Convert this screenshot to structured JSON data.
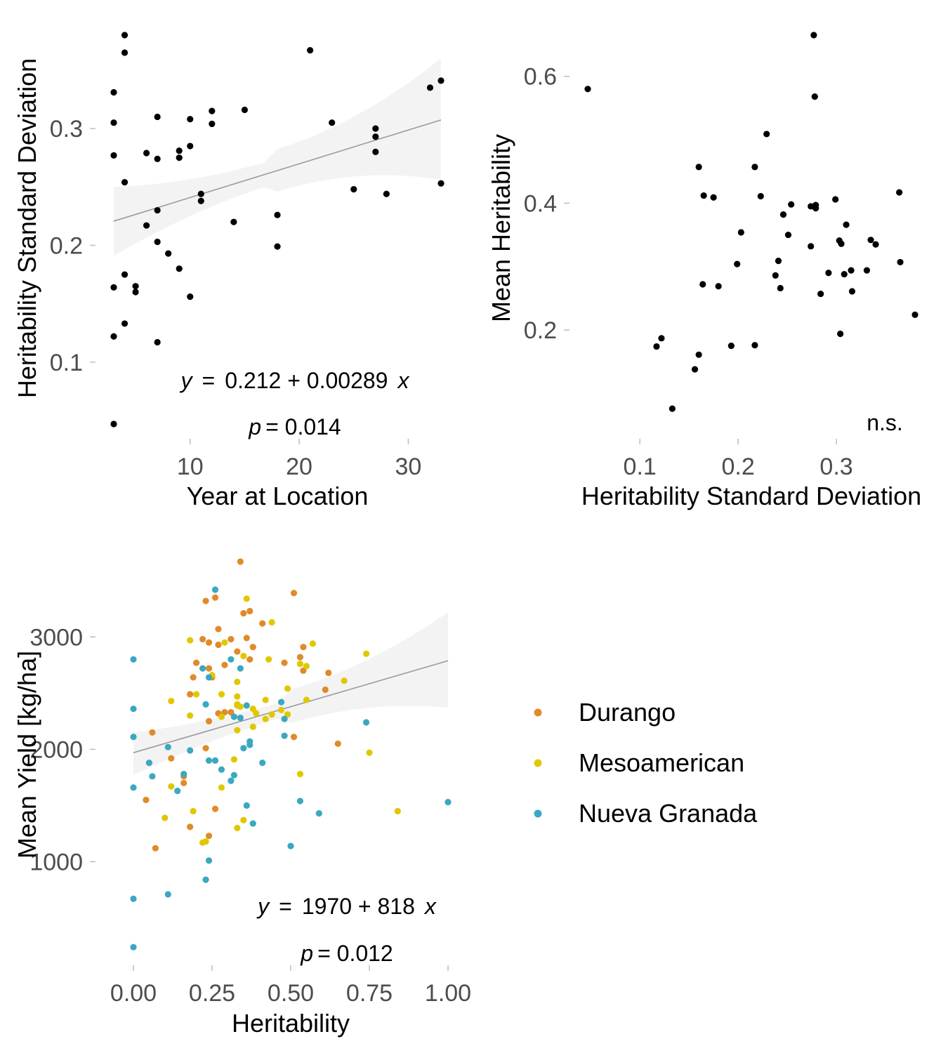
{
  "colors": {
    "Durango": "#e08b2a",
    "Mesoamerican": "#e0c800",
    "Nueva Granada": "#3aa8c1",
    "points": "#000000",
    "fit_line": "#9a9a9a",
    "ci_band": "#f3f3f3",
    "tick": "#bdbdbd"
  },
  "chart_data": [
    {
      "id": "panel-a",
      "type": "scatter",
      "xlabel": "Year  at Location",
      "ylabel": "Heritability Standard Deviation",
      "xlim": [
        3,
        33
      ],
      "ylim": [
        0.05,
        0.38
      ],
      "x_ticks": [
        10,
        20,
        30
      ],
      "y_ticks": [
        0.1,
        0.2,
        0.3
      ],
      "x_tick_labels": [
        "10",
        "20",
        "30"
      ],
      "y_tick_labels": [
        "0.1",
        "0.2",
        "0.3"
      ],
      "grid": false,
      "fit": {
        "intercept": 0.212,
        "slope": 0.00289,
        "ci_low": [
          0.191,
          0.256
        ],
        "ci_high": [
          0.25,
          0.36
        ]
      },
      "annotation_line1": {
        "y": "y",
        "eq": "=",
        "rhs": "0.212 + 0.00289",
        "x": "x"
      },
      "annotation_line2": {
        "p": "p",
        "rhs": "= 0.014"
      },
      "points": [
        [
          3,
          0.331
        ],
        [
          3,
          0.305
        ],
        [
          3,
          0.277
        ],
        [
          3,
          0.164
        ],
        [
          3,
          0.122
        ],
        [
          3,
          0.047
        ],
        [
          4,
          0.38
        ],
        [
          4,
          0.365
        ],
        [
          4,
          0.254
        ],
        [
          4,
          0.175
        ],
        [
          4,
          0.133
        ],
        [
          5,
          0.165
        ],
        [
          5,
          0.16
        ],
        [
          6,
          0.279
        ],
        [
          6,
          0.217
        ],
        [
          7,
          0.31
        ],
        [
          7,
          0.274
        ],
        [
          7,
          0.23
        ],
        [
          7,
          0.203
        ],
        [
          7,
          0.117
        ],
        [
          8,
          0.193
        ],
        [
          9,
          0.281
        ],
        [
          9,
          0.275
        ],
        [
          9,
          0.18
        ],
        [
          10,
          0.308
        ],
        [
          10,
          0.285
        ],
        [
          10,
          0.156
        ],
        [
          11,
          0.244
        ],
        [
          11,
          0.238
        ],
        [
          12,
          0.315
        ],
        [
          12,
          0.304
        ],
        [
          14,
          0.22
        ],
        [
          15,
          0.316
        ],
        [
          18,
          0.226
        ],
        [
          18,
          0.199
        ],
        [
          21,
          0.367
        ],
        [
          23,
          0.305
        ],
        [
          25,
          0.248
        ],
        [
          27,
          0.3
        ],
        [
          27,
          0.293
        ],
        [
          27,
          0.28
        ],
        [
          28,
          0.244
        ],
        [
          32,
          0.335
        ],
        [
          33,
          0.341
        ],
        [
          33,
          0.253
        ]
      ]
    },
    {
      "id": "panel-b",
      "type": "scatter",
      "xlabel": "Heritability Standard Deviation",
      "ylabel": "Mean Heritability",
      "xlim": [
        0.047,
        0.38
      ],
      "ylim": [
        0.075,
        0.665
      ],
      "x_ticks": [
        0.1,
        0.2,
        0.3
      ],
      "y_ticks": [
        0.2,
        0.4,
        0.6
      ],
      "x_tick_labels": [
        "0.1",
        "0.2",
        "0.3"
      ],
      "y_tick_labels": [
        "0.2",
        "0.4",
        "0.6"
      ],
      "grid": false,
      "annotation": "n.s.",
      "points": [
        [
          0.047,
          0.58
        ],
        [
          0.117,
          0.174
        ],
        [
          0.122,
          0.187
        ],
        [
          0.133,
          0.076
        ],
        [
          0.156,
          0.138
        ],
        [
          0.16,
          0.161
        ],
        [
          0.16,
          0.457
        ],
        [
          0.164,
          0.272
        ],
        [
          0.165,
          0.412
        ],
        [
          0.175,
          0.409
        ],
        [
          0.18,
          0.269
        ],
        [
          0.193,
          0.175
        ],
        [
          0.199,
          0.304
        ],
        [
          0.203,
          0.354
        ],
        [
          0.217,
          0.176
        ],
        [
          0.217,
          0.457
        ],
        [
          0.223,
          0.411
        ],
        [
          0.229,
          0.509
        ],
        [
          0.238,
          0.286
        ],
        [
          0.241,
          0.309
        ],
        [
          0.243,
          0.266
        ],
        [
          0.246,
          0.382
        ],
        [
          0.251,
          0.35
        ],
        [
          0.254,
          0.398
        ],
        [
          0.274,
          0.332
        ],
        [
          0.274,
          0.395
        ],
        [
          0.277,
          0.665
        ],
        [
          0.278,
          0.568
        ],
        [
          0.279,
          0.397
        ],
        [
          0.279,
          0.392
        ],
        [
          0.284,
          0.257
        ],
        [
          0.292,
          0.29
        ],
        [
          0.299,
          0.406
        ],
        [
          0.303,
          0.341
        ],
        [
          0.304,
          0.194
        ],
        [
          0.305,
          0.336
        ],
        [
          0.308,
          0.288
        ],
        [
          0.31,
          0.366
        ],
        [
          0.315,
          0.294
        ],
        [
          0.316,
          0.261
        ],
        [
          0.331,
          0.294
        ],
        [
          0.335,
          0.342
        ],
        [
          0.34,
          0.335
        ],
        [
          0.364,
          0.417
        ],
        [
          0.365,
          0.307
        ],
        [
          0.38,
          0.224
        ]
      ]
    },
    {
      "id": "panel-c",
      "type": "scatter",
      "xlabel": "Heritability",
      "ylabel": "Mean Yield [kg/ha]",
      "xlim": [
        0,
        1
      ],
      "ylim": [
        235,
        3670
      ],
      "x_ticks": [
        0,
        0.25,
        0.5,
        0.75,
        1.0
      ],
      "y_ticks": [
        1000,
        2000,
        3000
      ],
      "x_tick_labels": [
        "0.00",
        "0.25",
        "0.50",
        "0.75",
        "1.00"
      ],
      "y_tick_labels": [
        "1000",
        "2000",
        "3000"
      ],
      "grid": false,
      "fit": {
        "intercept": 1970,
        "slope": 818,
        "ci_low": [
          1770,
          2370
        ],
        "ci_high": [
          2150,
          3220
        ]
      },
      "annotation_line1": {
        "y": "y",
        "eq": "=",
        "rhs": "1970 + 818",
        "x": "x"
      },
      "annotation_line2": {
        "p": "p",
        "rhs": "= 0.012"
      },
      "series": [
        {
          "name": "Durango",
          "points": [
            [
              0.34,
              3670
            ],
            [
              0.51,
              3390
            ],
            [
              0.23,
              3320
            ],
            [
              0.26,
              3350
            ],
            [
              0.35,
              3210
            ],
            [
              0.37,
              3230
            ],
            [
              0.41,
              3120
            ],
            [
              0.27,
              3070
            ],
            [
              0.36,
              2990
            ],
            [
              0.31,
              2980
            ],
            [
              0.22,
              2980
            ],
            [
              0.24,
              2950
            ],
            [
              0.27,
              2930
            ],
            [
              0.38,
              2910
            ],
            [
              0.54,
              2910
            ],
            [
              0.33,
              2870
            ],
            [
              0.2,
              2770
            ],
            [
              0.37,
              2800
            ],
            [
              0.48,
              2770
            ],
            [
              0.29,
              2750
            ],
            [
              0.53,
              2820
            ],
            [
              0.54,
              2700
            ],
            [
              0.24,
              2720
            ],
            [
              0.62,
              2680
            ],
            [
              0.19,
              2640
            ],
            [
              0.25,
              2640
            ],
            [
              0.18,
              2490
            ],
            [
              0.61,
              2530
            ],
            [
              0.29,
              2330
            ],
            [
              0.27,
              2320
            ],
            [
              0.31,
              2330
            ],
            [
              0.24,
              2250
            ],
            [
              0.06,
              2150
            ],
            [
              0.51,
              2110
            ],
            [
              0.65,
              2050
            ],
            [
              0.23,
              2010
            ],
            [
              0.12,
              1920
            ],
            [
              0.16,
              1760
            ],
            [
              0.16,
              1700
            ],
            [
              0.04,
              1550
            ],
            [
              0.26,
              1470
            ],
            [
              0.18,
              1310
            ],
            [
              0.24,
              1230
            ],
            [
              0.07,
              1120
            ]
          ]
        },
        {
          "name": "Mesoamerican",
          "points": [
            [
              0.36,
              3340
            ],
            [
              0.44,
              3130
            ],
            [
              0.18,
              2970
            ],
            [
              0.57,
              2940
            ],
            [
              0.29,
              2950
            ],
            [
              0.74,
              2850
            ],
            [
              0.35,
              2830
            ],
            [
              0.43,
              2800
            ],
            [
              0.53,
              2760
            ],
            [
              0.55,
              2740
            ],
            [
              0.25,
              2660
            ],
            [
              0.67,
              2610
            ],
            [
              0.33,
              2600
            ],
            [
              0.49,
              2540
            ],
            [
              0.2,
              2490
            ],
            [
              0.28,
              2490
            ],
            [
              0.33,
              2470
            ],
            [
              0.55,
              2440
            ],
            [
              0.42,
              2440
            ],
            [
              0.12,
              2430
            ],
            [
              0.33,
              2400
            ],
            [
              0.33,
              2390
            ],
            [
              0.34,
              2380
            ],
            [
              0.38,
              2360
            ],
            [
              0.47,
              2350
            ],
            [
              0.39,
              2320
            ],
            [
              0.44,
              2310
            ],
            [
              0.49,
              2310
            ],
            [
              0.18,
              2300
            ],
            [
              0.28,
              2290
            ],
            [
              0.42,
              2270
            ],
            [
              0.38,
              2200
            ],
            [
              0.33,
              2170
            ],
            [
              0.75,
              1970
            ],
            [
              0.32,
              1910
            ],
            [
              0.53,
              1780
            ],
            [
              0.12,
              1670
            ],
            [
              0.28,
              1660
            ],
            [
              0.19,
              1450
            ],
            [
              0.84,
              1450
            ],
            [
              0.1,
              1390
            ],
            [
              0.35,
              1370
            ],
            [
              0.33,
              1300
            ],
            [
              0.23,
              1180
            ],
            [
              0.22,
              1170
            ]
          ]
        },
        {
          "name": "Nueva Granada",
          "points": [
            [
              0.26,
              3420
            ],
            [
              0.0,
              2800
            ],
            [
              0.31,
              2800
            ],
            [
              0.22,
              2720
            ],
            [
              0.34,
              2720
            ],
            [
              0.24,
              2640
            ],
            [
              0.47,
              2420
            ],
            [
              0.36,
              2390
            ],
            [
              0.23,
              2400
            ],
            [
              0.0,
              2360
            ],
            [
              0.32,
              2290
            ],
            [
              0.34,
              2280
            ],
            [
              0.48,
              2270
            ],
            [
              0.74,
              2240
            ],
            [
              0.48,
              2120
            ],
            [
              0.0,
              2110
            ],
            [
              0.37,
              2070
            ],
            [
              0.37,
              2040
            ],
            [
              0.35,
              2010
            ],
            [
              0.11,
              2020
            ],
            [
              0.18,
              1990
            ],
            [
              0.26,
              1900
            ],
            [
              0.24,
              1900
            ],
            [
              0.05,
              1880
            ],
            [
              0.41,
              1880
            ],
            [
              0.28,
              1820
            ],
            [
              0.16,
              1780
            ],
            [
              0.06,
              1760
            ],
            [
              0.32,
              1770
            ],
            [
              0.31,
              1720
            ],
            [
              0.0,
              1660
            ],
            [
              0.14,
              1630
            ],
            [
              0.53,
              1540
            ],
            [
              1.0,
              1530
            ],
            [
              0.36,
              1500
            ],
            [
              0.59,
              1430
            ],
            [
              0.38,
              1340
            ],
            [
              0.5,
              1140
            ],
            [
              0.24,
              1010
            ],
            [
              0.23,
              840
            ],
            [
              0.11,
              710
            ],
            [
              0.0,
              670
            ],
            [
              0.0,
              240
            ]
          ]
        }
      ]
    }
  ],
  "legend": {
    "items": [
      "Durango",
      "Mesoamerican",
      "Nueva Granada"
    ]
  }
}
